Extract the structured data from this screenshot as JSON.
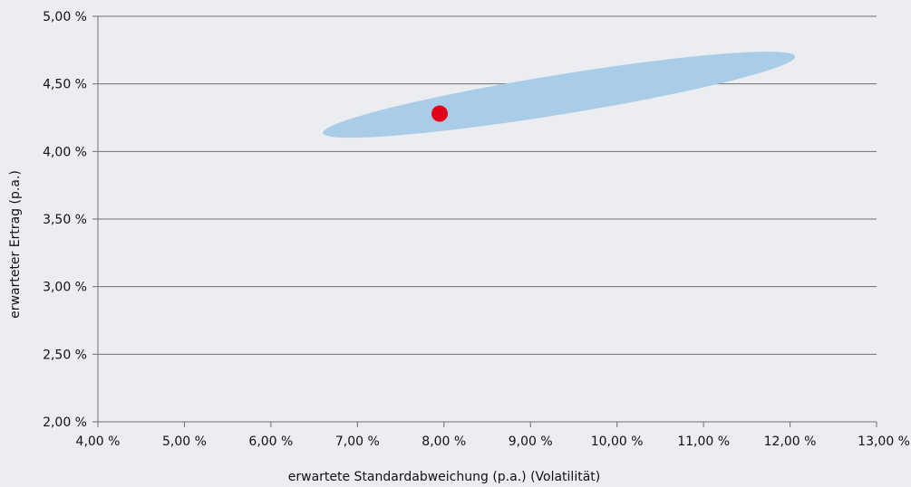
{
  "chart_data": {
    "type": "scatter",
    "title": "",
    "xlabel": "erwartete Standardabweichung (p.a.) (Volatilität)",
    "ylabel": "erwarteter Ertrag (p.a.)",
    "xlim": [
      4.0,
      13.0
    ],
    "ylim": [
      2.0,
      5.0
    ],
    "x_ticks": [
      4,
      5,
      6,
      7,
      8,
      9,
      10,
      11,
      12,
      13
    ],
    "y_ticks": [
      2.0,
      2.5,
      3.0,
      3.5,
      4.0,
      4.5,
      5.0
    ],
    "x_tick_labels": [
      "4,00 %",
      "5,00 %",
      "6,00 %",
      "7,00 %",
      "8,00 %",
      "9,00 %",
      "10,00 %",
      "11,00 %",
      "12,00 %",
      "13,00 %"
    ],
    "y_tick_labels": [
      "2,00 %",
      "2,50 %",
      "3,00 %",
      "3,50 %",
      "4,00 %",
      "4,50 %",
      "5,00 %"
    ],
    "grid": "horizontal",
    "legend": "none",
    "points": [
      {
        "x": 7.95,
        "y": 4.28,
        "color": "#e2001a"
      }
    ],
    "region": {
      "shape": "ellipse",
      "center": [
        9.33,
        4.42
      ],
      "extent_x": [
        6.5,
        12.17
      ],
      "extent_y": [
        4.07,
        4.77
      ],
      "color": "#a9cde9"
    },
    "colors": {
      "background": "#ecedf0",
      "grid": "#6f6f6f",
      "axis": "#6f6f6f",
      "text": "#111111"
    }
  }
}
